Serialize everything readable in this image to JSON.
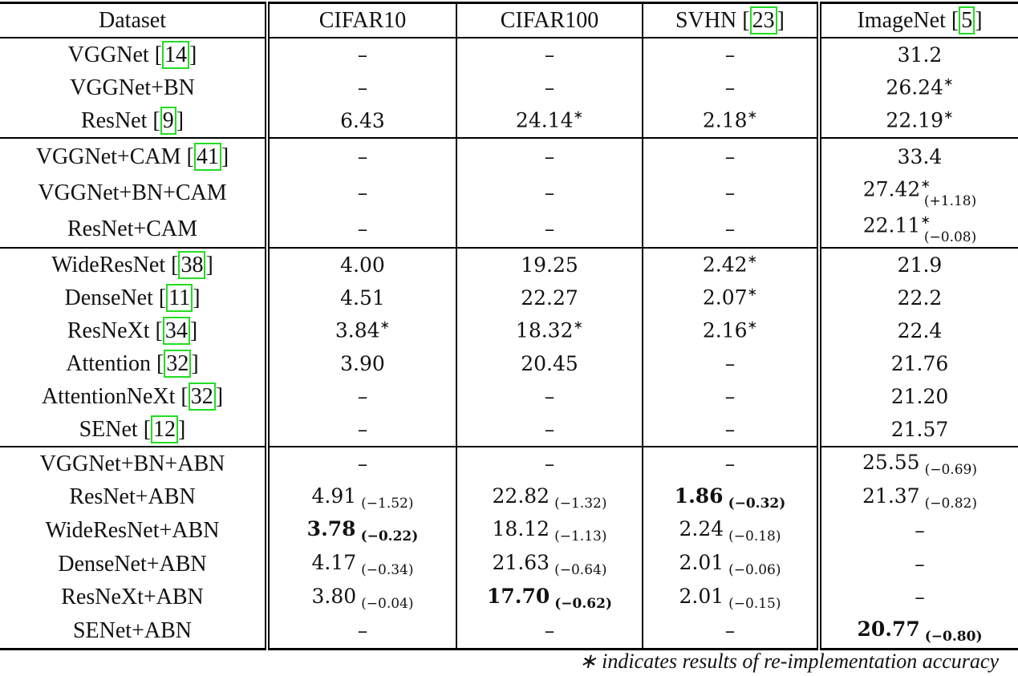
{
  "headers": [
    {
      "text": "Dataset"
    },
    {
      "text": "CIFAR10"
    },
    {
      "text": "CIFAR100"
    },
    {
      "text": "SVHN",
      "cite": "23"
    },
    {
      "text": "ImageNet",
      "cite": "5"
    }
  ],
  "groups": [
    [
      {
        "name": "VGGNet",
        "cite": "14",
        "cells": [
          {
            "v": "–"
          },
          {
            "v": "–"
          },
          {
            "v": "–"
          },
          {
            "v": "31.2"
          }
        ]
      },
      {
        "name": "VGGNet+BN",
        "cells": [
          {
            "v": "–"
          },
          {
            "v": "–"
          },
          {
            "v": "–"
          },
          {
            "v": "26.24",
            "star": true
          }
        ]
      },
      {
        "name": "ResNet",
        "cite": "9",
        "cells": [
          {
            "v": "6.43"
          },
          {
            "v": "24.14",
            "star": true
          },
          {
            "v": "2.18",
            "star": true
          },
          {
            "v": "22.19",
            "star": true
          }
        ]
      }
    ],
    [
      {
        "name": "VGGNet+CAM",
        "cite": "41",
        "cells": [
          {
            "v": "–"
          },
          {
            "v": "–"
          },
          {
            "v": "–"
          },
          {
            "v": "33.4"
          }
        ]
      },
      {
        "name": "VGGNet+BN+CAM",
        "cells": [
          {
            "v": "–"
          },
          {
            "v": "–"
          },
          {
            "v": "–"
          },
          {
            "v": "27.42",
            "star": true,
            "sub": "(+1.18)"
          }
        ]
      },
      {
        "name": "ResNet+CAM",
        "cells": [
          {
            "v": "–"
          },
          {
            "v": "–"
          },
          {
            "v": "–"
          },
          {
            "v": "22.11",
            "star": true,
            "sub": "(−0.08)"
          }
        ]
      }
    ],
    [
      {
        "name": "WideResNet",
        "cite": "38",
        "cells": [
          {
            "v": "4.00"
          },
          {
            "v": "19.25"
          },
          {
            "v": "2.42",
            "star": true
          },
          {
            "v": "21.9"
          }
        ]
      },
      {
        "name": "DenseNet",
        "cite": "11",
        "cells": [
          {
            "v": "4.51"
          },
          {
            "v": "22.27"
          },
          {
            "v": "2.07",
            "star": true
          },
          {
            "v": "22.2"
          }
        ]
      },
      {
        "name": "ResNeXt",
        "cite": "34",
        "cells": [
          {
            "v": "3.84",
            "star": true
          },
          {
            "v": "18.32",
            "star": true
          },
          {
            "v": "2.16",
            "star": true
          },
          {
            "v": "22.4"
          }
        ]
      },
      {
        "name": "Attention",
        "cite": "32",
        "cells": [
          {
            "v": "3.90"
          },
          {
            "v": "20.45"
          },
          {
            "v": "–"
          },
          {
            "v": "21.76"
          }
        ]
      },
      {
        "name": "AttentionNeXt",
        "cite": "32",
        "cells": [
          {
            "v": "–"
          },
          {
            "v": "–"
          },
          {
            "v": "–"
          },
          {
            "v": "21.20"
          }
        ]
      },
      {
        "name": "SENet",
        "cite": "12",
        "cells": [
          {
            "v": "–"
          },
          {
            "v": "–"
          },
          {
            "v": "–"
          },
          {
            "v": "21.57"
          }
        ]
      }
    ],
    [
      {
        "name": "VGGNet+BN+ABN",
        "cells": [
          {
            "v": "–"
          },
          {
            "v": "–"
          },
          {
            "v": "–"
          },
          {
            "v": "25.55",
            "d": "(−0.69)"
          }
        ]
      },
      {
        "name": "ResNet+ABN",
        "cells": [
          {
            "v": "4.91",
            "d": "(−1.52)"
          },
          {
            "v": "22.82",
            "d": "(−1.32)"
          },
          {
            "v": "1.86",
            "d": "(−0.32)",
            "bold": true
          },
          {
            "v": "21.37",
            "d": "(−0.82)"
          }
        ]
      },
      {
        "name": "WideResNet+ABN",
        "cells": [
          {
            "v": "3.78",
            "d": "(−0.22)",
            "bold": true
          },
          {
            "v": "18.12",
            "d": "(−1.13)"
          },
          {
            "v": "2.24",
            "d": "(−0.18)"
          },
          {
            "v": "–"
          }
        ]
      },
      {
        "name": "DenseNet+ABN",
        "cells": [
          {
            "v": "4.17",
            "d": "(−0.34)"
          },
          {
            "v": "21.63",
            "d": "(−0.64)"
          },
          {
            "v": "2.01",
            "d": "(−0.06)"
          },
          {
            "v": "–"
          }
        ]
      },
      {
        "name": "ResNeXt+ABN",
        "cells": [
          {
            "v": "3.80",
            "d": "(−0.04)"
          },
          {
            "v": "17.70",
            "d": "(−0.62)",
            "bold": true
          },
          {
            "v": "2.01",
            "d": "(−0.15)"
          },
          {
            "v": "–"
          }
        ]
      },
      {
        "name": "SENet+ABN",
        "cells": [
          {
            "v": "–"
          },
          {
            "v": "–"
          },
          {
            "v": "–"
          },
          {
            "v": "20.77",
            "d": "(−0.80)",
            "bold": true
          }
        ]
      }
    ]
  ],
  "footnote": "∗ indicates results of re-implementation accuracy",
  "colors": {
    "citation_box": "#22dd22"
  }
}
